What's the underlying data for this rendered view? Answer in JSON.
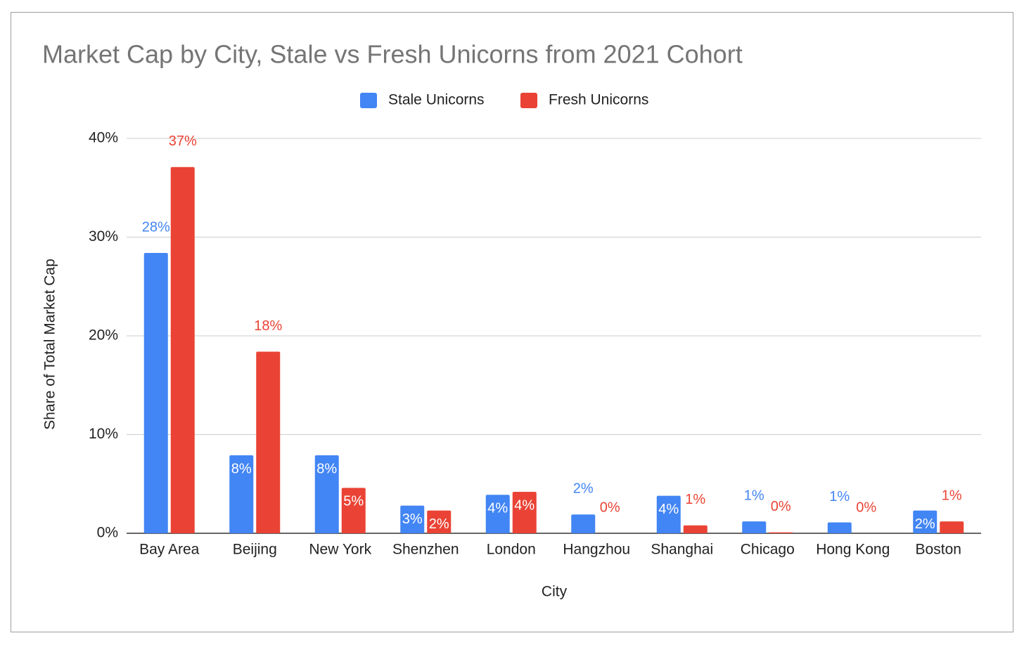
{
  "chart_data": {
    "type": "bar",
    "title": "Market Cap by City, Stale vs Fresh Unicorns from 2021 Cohort",
    "x_label": "City",
    "y_label": "Share of Total Market Cap",
    "categories": [
      "Bay Area",
      "Beijing",
      "New York",
      "Shenzhen",
      "London",
      "Hangzhou",
      "Shanghai",
      "Chicago",
      "Hong Kong",
      "Boston"
    ],
    "series": [
      {
        "name": "Stale Unicorns",
        "color": "#4285f4",
        "values": [
          28.4,
          7.9,
          7.9,
          2.8,
          3.9,
          1.9,
          3.8,
          1.2,
          1.1,
          2.3
        ],
        "value_labels": [
          "28%",
          "8%",
          "8%",
          "3%",
          "4%",
          "2%",
          "4%",
          "1%",
          "1%",
          "2%"
        ]
      },
      {
        "name": "Fresh Unicorns",
        "color": "#ea4335",
        "values": [
          37.1,
          18.4,
          4.6,
          2.3,
          4.2,
          0,
          0.8,
          0.1,
          0,
          1.2
        ],
        "value_labels": [
          "37%",
          "18%",
          "5%",
          "2%",
          "4%",
          "0%",
          "1%",
          "0%",
          "0%",
          "1%"
        ]
      }
    ],
    "ylim": [
      0,
      40
    ],
    "yticks": [
      {
        "value": 0,
        "label": "0%"
      },
      {
        "value": 10,
        "label": "10%"
      },
      {
        "value": 20,
        "label": "20%"
      },
      {
        "value": 30,
        "label": "30%"
      },
      {
        "value": 40,
        "label": "40%"
      }
    ],
    "grid": true,
    "legend": "top"
  }
}
